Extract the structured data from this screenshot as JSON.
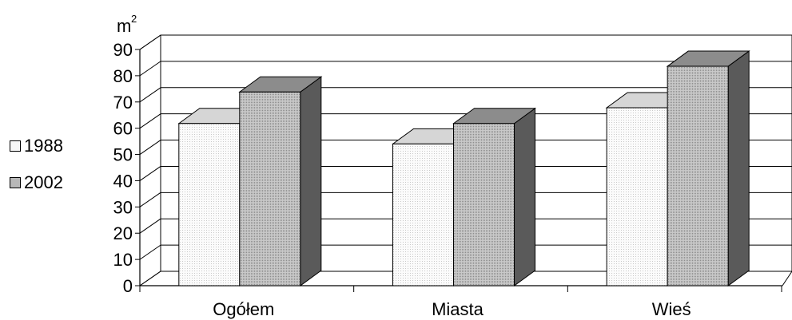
{
  "chart_data": {
    "type": "bar",
    "title": "",
    "xlabel": "",
    "ylabel": "m",
    "ylabel_superscript": "2",
    "categories": [
      "Ogółem",
      "Miasta",
      "Wieś"
    ],
    "series": [
      {
        "name": "1988",
        "values": [
          61.8,
          54.0,
          67.8
        ],
        "color": "#f2f2f2"
      },
      {
        "name": "2002",
        "values": [
          73.8,
          61.8,
          83.6
        ],
        "color": "#b8b8b8"
      }
    ],
    "y_ticks": [
      "0",
      "10",
      "20",
      "30",
      "40",
      "50",
      "60",
      "70",
      "80",
      "90"
    ],
    "ylim": [
      0,
      90
    ],
    "grid": true,
    "legend_position": "left",
    "three_d": true
  }
}
